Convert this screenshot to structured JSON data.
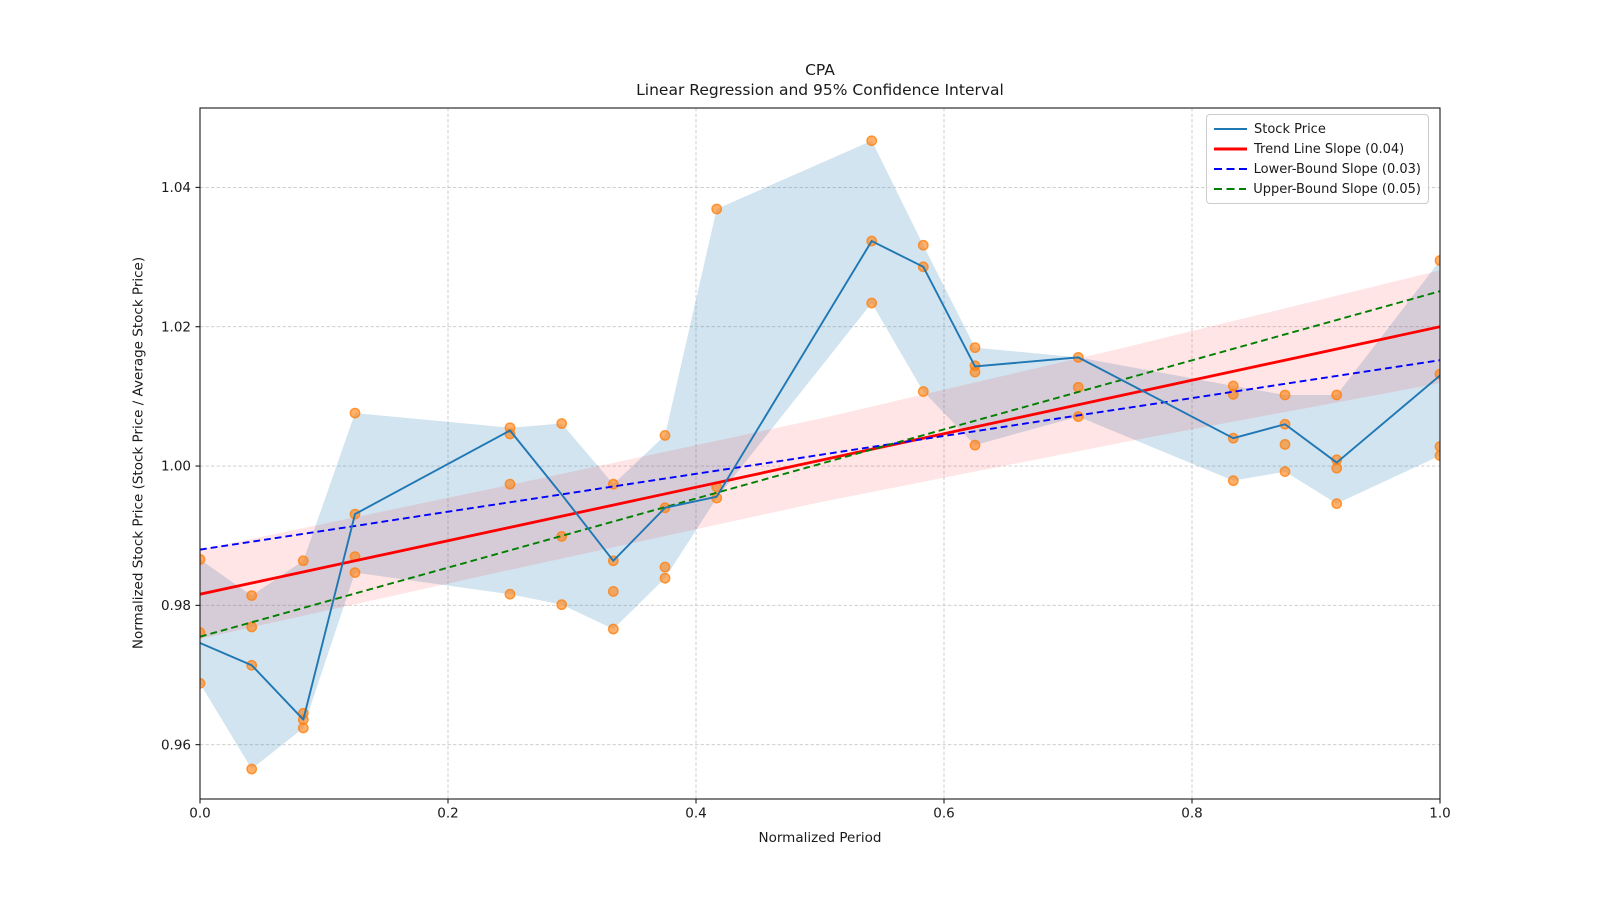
{
  "chart_data": {
    "type": "line",
    "title": "CPA",
    "subtitle": "Linear Regression and 95% Confidence Interval",
    "xlabel": "Normalized Period",
    "ylabel": "Normalized Stock Price (Stock Price / Average Stock Price)",
    "x_ticks": [
      "0.0",
      "0.2",
      "0.4",
      "0.6",
      "0.8",
      "1.0"
    ],
    "x_tick_values": [
      0,
      0.2,
      0.4,
      0.6,
      0.8,
      1.0
    ],
    "y_ticks": [
      "0.96",
      "0.98",
      "1.00",
      "1.02",
      "1.04"
    ],
    "y_tick_values": [
      0.96,
      0.98,
      1.0,
      1.02,
      1.04
    ],
    "xlim": [
      0,
      1.0
    ],
    "ylim": [
      0.9522,
      1.0514
    ],
    "grid": true,
    "legend_position": "upper right",
    "x": [
      0,
      0.0417,
      0.0833,
      0.125,
      0.25,
      0.2917,
      0.3333,
      0.375,
      0.4167,
      0.5417,
      0.5833,
      0.625,
      0.7083,
      0.8333,
      0.875,
      0.9167,
      1.0
    ],
    "series": [
      {
        "name": "Stock Price",
        "values": [
          0.9746,
          0.9714,
          0.9636,
          0.9931,
          1.0051,
          0.9959,
          0.9864,
          0.994,
          0.9956,
          1.0323,
          1.0286,
          1.0143,
          1.0156,
          1.004,
          1.006,
          1.0005,
          1.013
        ]
      }
    ],
    "confidence_band": {
      "upper": [
        0.9866,
        0.9814,
        0.9864,
        1.0076,
        1.0055,
        1.0061,
        0.9974,
        1.0044,
        1.0369,
        1.0467,
        1.0317,
        1.017,
        1.0156,
        1.0115,
        1.0102,
        1.0102,
        1.0295
      ],
      "lower": [
        0.9688,
        0.9565,
        0.9624,
        0.9847,
        0.9816,
        0.9801,
        0.9766,
        0.9839,
        0.9954,
        1.0234,
        1.0107,
        1.003,
        1.0071,
        0.9979,
        0.9992,
        0.9946,
        1.0015
      ]
    },
    "scatter_points": [
      [
        0,
        0.9866
      ],
      [
        0,
        0.9761
      ],
      [
        0,
        0.9688
      ],
      [
        0.0417,
        0.9814
      ],
      [
        0.0417,
        0.9769
      ],
      [
        0.0417,
        0.9714
      ],
      [
        0.0417,
        0.9565
      ],
      [
        0.0833,
        0.9864
      ],
      [
        0.0833,
        0.9645
      ],
      [
        0.0833,
        0.9636
      ],
      [
        0.0833,
        0.9624
      ],
      [
        0.125,
        1.0076
      ],
      [
        0.125,
        0.9931
      ],
      [
        0.125,
        0.987
      ],
      [
        0.125,
        0.9847
      ],
      [
        0.25,
        1.0055
      ],
      [
        0.25,
        1.0046
      ],
      [
        0.25,
        0.9974
      ],
      [
        0.25,
        0.9816
      ],
      [
        0.2917,
        1.0061
      ],
      [
        0.2917,
        0.9899
      ],
      [
        0.2917,
        0.9801
      ],
      [
        0.3333,
        0.9974
      ],
      [
        0.3333,
        0.9864
      ],
      [
        0.3333,
        0.982
      ],
      [
        0.3333,
        0.9766
      ],
      [
        0.375,
        1.0044
      ],
      [
        0.375,
        0.994
      ],
      [
        0.375,
        0.9855
      ],
      [
        0.375,
        0.9839
      ],
      [
        0.4167,
        1.0369
      ],
      [
        0.4167,
        0.997
      ],
      [
        0.4167,
        0.9954
      ],
      [
        0.5417,
        1.0467
      ],
      [
        0.5417,
        1.0323
      ],
      [
        0.5417,
        1.0234
      ],
      [
        0.5833,
        1.0317
      ],
      [
        0.5833,
        1.0286
      ],
      [
        0.5833,
        1.0107
      ],
      [
        0.625,
        1.017
      ],
      [
        0.625,
        1.0144
      ],
      [
        0.625,
        1.0135
      ],
      [
        0.625,
        1.003
      ],
      [
        0.7083,
        1.0156
      ],
      [
        0.7083,
        1.0113
      ],
      [
        0.7083,
        1.0071
      ],
      [
        0.8333,
        1.0115
      ],
      [
        0.8333,
        1.0103
      ],
      [
        0.8333,
        1.004
      ],
      [
        0.8333,
        0.9979
      ],
      [
        0.875,
        1.0102
      ],
      [
        0.875,
        1.006
      ],
      [
        0.875,
        1.0031
      ],
      [
        0.875,
        0.9992
      ],
      [
        0.9167,
        1.0102
      ],
      [
        0.9167,
        1.0009
      ],
      [
        0.9167,
        0.9997
      ],
      [
        0.9167,
        0.9946
      ],
      [
        1.0,
        1.0295
      ],
      [
        1.0,
        1.0132
      ],
      [
        1.0,
        1.0028
      ],
      [
        1.0,
        1.0015
      ]
    ],
    "trend_line": {
      "label": "Trend Line Slope (0.04)",
      "slope": 0.04,
      "start": 0.9816,
      "end": 1.02
    },
    "lower_bound_line": {
      "label": "Lower-Bound Slope (0.03)",
      "slope": 0.03,
      "start": 0.988,
      "end": 1.0152
    },
    "upper_bound_line": {
      "label": "Upper-Bound Slope (0.05)",
      "slope": 0.05,
      "start": 0.9755,
      "end": 1.0251
    },
    "trend_band": {
      "x": [
        0,
        0.25,
        0.5,
        0.75,
        1.0
      ],
      "half_width": [
        0.0064,
        0.0061,
        0.006,
        0.0068,
        0.0081
      ]
    },
    "legend": [
      {
        "label": "Stock Price",
        "color": "#1f77b4",
        "dash": false,
        "width": 2
      },
      {
        "label": "Trend Line Slope (0.04)",
        "color": "#ff0000",
        "dash": false,
        "width": 3
      },
      {
        "label": "Lower-Bound Slope (0.03)",
        "color": "#0000ff",
        "dash": true,
        "width": 2
      },
      {
        "label": "Upper-Bound Slope (0.05)",
        "color": "#008000",
        "dash": true,
        "width": 2
      }
    ]
  },
  "colors": {
    "stock_line": "#1f77b4",
    "scatter": "#ff7f0e",
    "trend": "#ff0000",
    "lower_bound": "#0000ff",
    "upper_bound": "#008000",
    "band_fill": "#1f77b4",
    "band_opacity": 0.2,
    "trend_band_fill": "#ff0000",
    "trend_band_opacity": 0.1,
    "grid": "#c9c9c9",
    "spine": "#1a1a1a",
    "text": "#1a1a1a",
    "legend_border": "#cccccc"
  }
}
